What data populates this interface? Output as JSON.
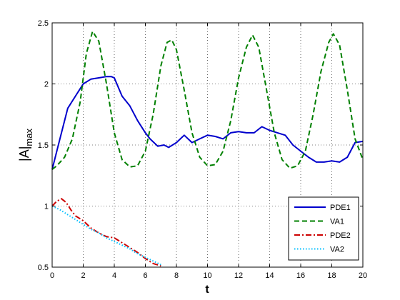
{
  "chart_data": {
    "type": "line",
    "title": "",
    "xlabel": "t",
    "ylabel_main": "|A|",
    "ylabel_sub": "max",
    "xlim": [
      0,
      20
    ],
    "ylim": [
      0.5,
      2.5
    ],
    "xticks": [
      "0",
      "2",
      "4",
      "6",
      "8",
      "10",
      "12",
      "14",
      "16",
      "18",
      "20"
    ],
    "yticks": [
      "0.5",
      "1",
      "1.5",
      "2",
      "2.5"
    ],
    "grid": true,
    "legend_position": "bottom-right",
    "series": [
      {
        "name": "PDE1",
        "color": "#0000cc",
        "style": "solid",
        "x": [
          0,
          0.5,
          1,
          1.5,
          2,
          2.5,
          3,
          3.5,
          3.8,
          4,
          4.5,
          5,
          5.5,
          6,
          6.3,
          6.8,
          7.2,
          7.5,
          8,
          8.5,
          9,
          9.5,
          10,
          10.5,
          11,
          11.5,
          12,
          12.5,
          13,
          13.5,
          14,
          14.5,
          15,
          15.5,
          16,
          16.5,
          17,
          17.5,
          18,
          18.5,
          19,
          19.5,
          20
        ],
        "y": [
          1.3,
          1.55,
          1.8,
          1.9,
          2.0,
          2.04,
          2.05,
          2.06,
          2.06,
          2.05,
          1.9,
          1.82,
          1.7,
          1.6,
          1.55,
          1.49,
          1.5,
          1.48,
          1.52,
          1.58,
          1.52,
          1.55,
          1.58,
          1.57,
          1.55,
          1.6,
          1.61,
          1.6,
          1.6,
          1.65,
          1.62,
          1.6,
          1.58,
          1.5,
          1.45,
          1.4,
          1.36,
          1.36,
          1.37,
          1.36,
          1.4,
          1.52,
          1.53
        ]
      },
      {
        "name": "VA1",
        "color": "#008000",
        "style": "dashed",
        "x": [
          0,
          0.3,
          0.8,
          1.3,
          1.8,
          2.2,
          2.6,
          3.0,
          3.5,
          4.0,
          4.5,
          5.0,
          5.5,
          6.0,
          6.5,
          7.0,
          7.4,
          7.7,
          8.0,
          8.5,
          9.0,
          9.5,
          10.0,
          10.5,
          11.0,
          11.5,
          12.0,
          12.5,
          12.9,
          13.3,
          13.8,
          14.3,
          14.8,
          15.3,
          15.8,
          16.3,
          16.8,
          17.3,
          17.8,
          18.1,
          18.5,
          19.0,
          19.5,
          20.0
        ],
        "y": [
          1.3,
          1.33,
          1.4,
          1.55,
          1.85,
          2.25,
          2.43,
          2.35,
          2.0,
          1.6,
          1.38,
          1.32,
          1.33,
          1.45,
          1.75,
          2.15,
          2.34,
          2.36,
          2.28,
          1.95,
          1.6,
          1.4,
          1.33,
          1.34,
          1.45,
          1.7,
          2.05,
          2.3,
          2.4,
          2.3,
          1.95,
          1.6,
          1.38,
          1.31,
          1.33,
          1.45,
          1.75,
          2.1,
          2.34,
          2.41,
          2.32,
          1.95,
          1.55,
          1.38
        ]
      },
      {
        "name": "PDE2",
        "color": "#cc0000",
        "style": "dashdot",
        "x": [
          0,
          0.3,
          0.6,
          0.9,
          1.2,
          1.5,
          2.0,
          2.5,
          3.0,
          3.5,
          4.0,
          4.5,
          5.0,
          5.5,
          6.0,
          6.5,
          7.0
        ],
        "y": [
          1.0,
          1.04,
          1.06,
          1.03,
          0.97,
          0.92,
          0.88,
          0.82,
          0.78,
          0.75,
          0.74,
          0.7,
          0.66,
          0.62,
          0.57,
          0.53,
          0.51
        ]
      },
      {
        "name": "VA2",
        "color": "#00bfff",
        "style": "dotted",
        "x": [
          0,
          0.5,
          1.0,
          1.5,
          2.0,
          2.5,
          3.0,
          3.5,
          4.0,
          4.5,
          5.0,
          5.5,
          6.0,
          6.5,
          7.0
        ],
        "y": [
          1.0,
          0.97,
          0.93,
          0.89,
          0.85,
          0.81,
          0.78,
          0.74,
          0.71,
          0.68,
          0.65,
          0.61,
          0.58,
          0.55,
          0.52
        ]
      }
    ]
  }
}
